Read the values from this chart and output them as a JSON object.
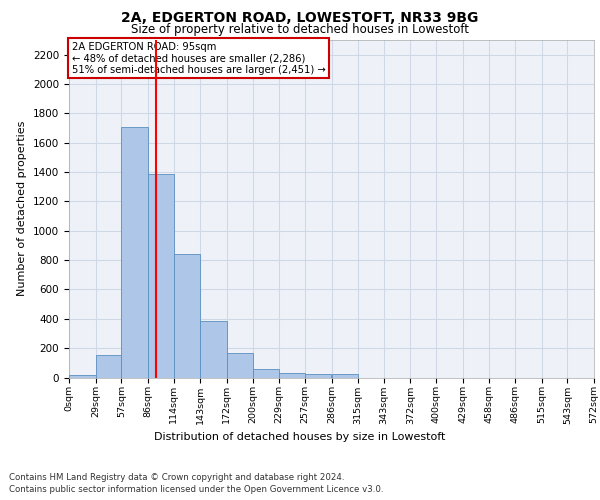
{
  "title": "2A, EDGERTON ROAD, LOWESTOFT, NR33 9BG",
  "subtitle": "Size of property relative to detached houses in Lowestoft",
  "xlabel": "Distribution of detached houses by size in Lowestoft",
  "ylabel": "Number of detached properties",
  "footer_line1": "Contains HM Land Registry data © Crown copyright and database right 2024.",
  "footer_line2": "Contains public sector information licensed under the Open Government Licence v3.0.",
  "bin_edges": [
    0,
    29,
    57,
    86,
    114,
    143,
    172,
    200,
    229,
    257,
    286,
    315,
    343,
    372,
    400,
    429,
    458,
    486,
    515,
    543,
    572
  ],
  "bar_heights": [
    15,
    155,
    1710,
    1390,
    840,
    385,
    165,
    60,
    30,
    25,
    25,
    0,
    0,
    0,
    0,
    0,
    0,
    0,
    0,
    0
  ],
  "bar_color": "#aec6e8",
  "bar_edge_color": "#5a8fc0",
  "grid_color": "#d0d8e8",
  "background_color": "#eef2f8",
  "red_line_x": 95,
  "annotation_text": "2A EDGERTON ROAD: 95sqm\n← 48% of detached houses are smaller (2,286)\n51% of semi-detached houses are larger (2,451) →",
  "annotation_box_color": "#ffffff",
  "annotation_box_edge_color": "#cc0000",
  "ylim": [
    0,
    2300
  ],
  "yticks": [
    0,
    200,
    400,
    600,
    800,
    1000,
    1200,
    1400,
    1600,
    1800,
    2000,
    2200
  ],
  "tick_labels": [
    "0sqm",
    "29sqm",
    "57sqm",
    "86sqm",
    "114sqm",
    "143sqm",
    "172sqm",
    "200sqm",
    "229sqm",
    "257sqm",
    "286sqm",
    "315sqm",
    "343sqm",
    "372sqm",
    "400sqm",
    "429sqm",
    "458sqm",
    "486sqm",
    "515sqm",
    "543sqm",
    "572sqm"
  ]
}
